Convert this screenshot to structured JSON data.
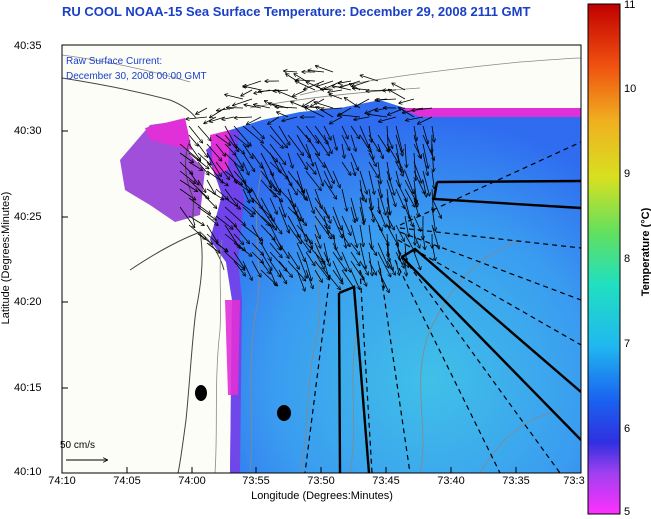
{
  "title": "RU COOL  NOAA-15  Sea Surface Temperature:  December 29, 2008 2111 GMT",
  "current_legend": {
    "line1": "Raw Surface Current:",
    "line2": "December 30, 2008 00:00 GMT",
    "scale_label": "50 cm/s"
  },
  "axes": {
    "xlabel": "Longitude (Degrees:Minutes)",
    "ylabel": "Latitude (Degrees:Minutes)",
    "xticks": [
      "74:10",
      "74:05",
      "74:00",
      "73:55",
      "73:50",
      "73:45",
      "73:40",
      "73:35",
      "73:3"
    ],
    "yticks": [
      "40:35",
      "40:30",
      "40:25",
      "40:20",
      "40:15",
      "40:10"
    ]
  },
  "colorbar": {
    "label": "Temperature (°C)",
    "ticks": [
      "11",
      "10",
      "9",
      "8",
      "7",
      "6",
      "5"
    ],
    "min": 5,
    "max": 11
  },
  "colors": {
    "title": "#1a3fc8",
    "land": "#fdfdf8",
    "water_mid": "#3fa6f0",
    "cold_edge": "#e030d8",
    "track_lines": "#000000"
  }
}
